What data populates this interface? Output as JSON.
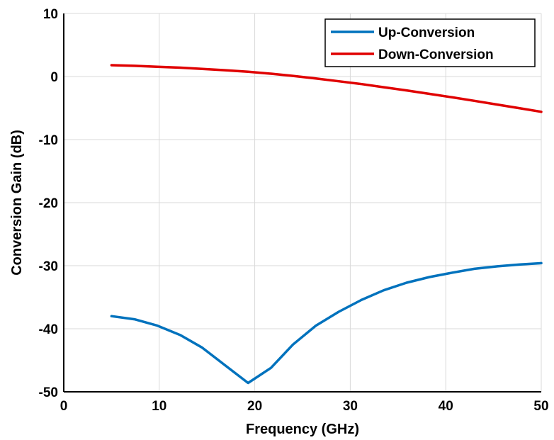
{
  "chart_data": {
    "type": "line",
    "title": "",
    "xlabel": "Frequency (GHz)",
    "ylabel": "Conversion Gain (dB)",
    "xlim": [
      0,
      50
    ],
    "ylim": [
      -50,
      10
    ],
    "xticks": [
      0,
      10,
      20,
      30,
      40,
      50
    ],
    "yticks": [
      10,
      0,
      -10,
      -20,
      -30,
      -40,
      -50
    ],
    "grid": true,
    "legend_position": "top-right",
    "series": [
      {
        "name": "Up-Conversion",
        "color": "#0072BD",
        "x": [
          5,
          7.4,
          9.8,
          12.2,
          14.5,
          16.9,
          19.3,
          21.7,
          24.0,
          26.4,
          28.8,
          31.2,
          33.5,
          35.9,
          38.3,
          40.7,
          43.0,
          45.4,
          47.8,
          50
        ],
        "y": [
          -38.0,
          -38.5,
          -39.5,
          -41.0,
          -43.0,
          -45.8,
          -48.6,
          -46.2,
          -42.5,
          -39.5,
          -37.3,
          -35.4,
          -33.9,
          -32.7,
          -31.8,
          -31.1,
          -30.5,
          -30.1,
          -29.8,
          -29.6
        ]
      },
      {
        "name": "Down-Conversion",
        "color": "#E00000",
        "x": [
          5,
          7.4,
          9.8,
          12.2,
          14.5,
          16.9,
          19.3,
          21.7,
          24.0,
          26.4,
          28.8,
          31.2,
          33.5,
          35.9,
          38.3,
          40.7,
          43.0,
          45.4,
          47.8,
          50
        ],
        "y": [
          1.8,
          1.7,
          1.55,
          1.4,
          1.2,
          1.0,
          0.75,
          0.45,
          0.1,
          -0.3,
          -0.75,
          -1.2,
          -1.7,
          -2.2,
          -2.75,
          -3.3,
          -3.85,
          -4.45,
          -5.05,
          -5.6
        ]
      }
    ]
  }
}
